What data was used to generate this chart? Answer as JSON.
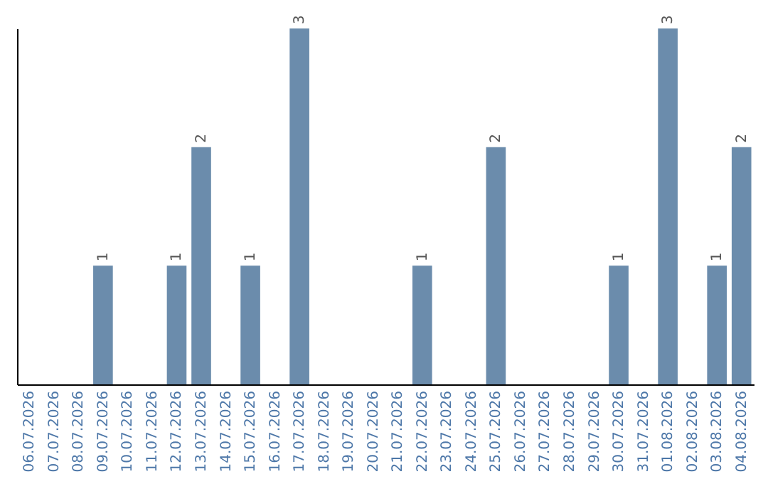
{
  "chart_data": {
    "type": "bar",
    "categories": [
      "06.07.2026",
      "07.07.2026",
      "08.07.2026",
      "09.07.2026",
      "10.07.2026",
      "11.07.2026",
      "12.07.2026",
      "13.07.2026",
      "14.07.2026",
      "15.07.2026",
      "16.07.2026",
      "17.07.2026",
      "18.07.2026",
      "19.07.2026",
      "20.07.2026",
      "21.07.2026",
      "22.07.2026",
      "23.07.2026",
      "24.07.2026",
      "25.07.2026",
      "26.07.2026",
      "27.07.2026",
      "28.07.2026",
      "29.07.2026",
      "30.07.2026",
      "31.07.2026",
      "01.08.2026",
      "02.08.2026",
      "03.08.2026",
      "04.08.2026"
    ],
    "values": [
      0,
      0,
      0,
      1,
      0,
      0,
      1,
      2,
      0,
      1,
      0,
      3,
      0,
      0,
      0,
      0,
      1,
      0,
      0,
      2,
      0,
      0,
      0,
      0,
      1,
      0,
      3,
      0,
      1,
      2
    ],
    "value_labels": [
      null,
      null,
      null,
      "1",
      null,
      null,
      "1",
      "2",
      null,
      "1",
      null,
      "3",
      null,
      null,
      null,
      null,
      "1",
      null,
      null,
      "2",
      null,
      null,
      null,
      null,
      "1",
      null,
      "3",
      null,
      "1",
      "2"
    ],
    "color": "#6b8cac",
    "tick_labels": "x"
  }
}
